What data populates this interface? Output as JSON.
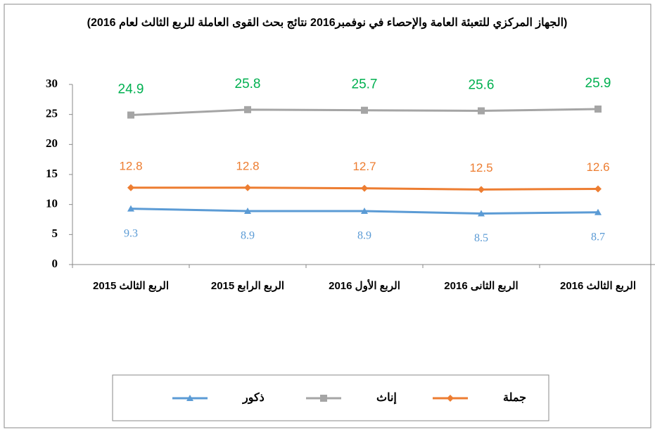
{
  "chart_data": {
    "type": "line",
    "title": "(الجهاز المركزي للتعبئة العامة والإحصاء في نوفمبر2016 نتائج بحث القوى العاملة للربع الثالث لعام 2016)",
    "categories": [
      "الربع الثالث 2015",
      "الربع الرابع 2015",
      "الربع الأول 2016",
      "الربع الثانى 2016",
      "الربع الثالث 2016"
    ],
    "series": [
      {
        "name": "ذكور",
        "color": "#5b9bd5",
        "label_color": "#5b9bd5",
        "marker": "triangle",
        "values": [
          9.3,
          8.9,
          8.9,
          8.5,
          8.7
        ]
      },
      {
        "name": "إناث",
        "color": "#a5a5a5",
        "label_color": "#00b050",
        "marker": "square",
        "values": [
          24.9,
          25.8,
          25.7,
          25.6,
          25.9
        ]
      },
      {
        "name": "جملة",
        "color": "#ed7d31",
        "label_color": "#ed7d31",
        "marker": "diamond",
        "values": [
          12.8,
          12.8,
          12.7,
          12.5,
          12.6
        ]
      }
    ],
    "ylim": [
      0,
      30
    ],
    "yticks": [
      0,
      5,
      10,
      15,
      20,
      25,
      30
    ],
    "grid": false,
    "legend": "bottom"
  }
}
